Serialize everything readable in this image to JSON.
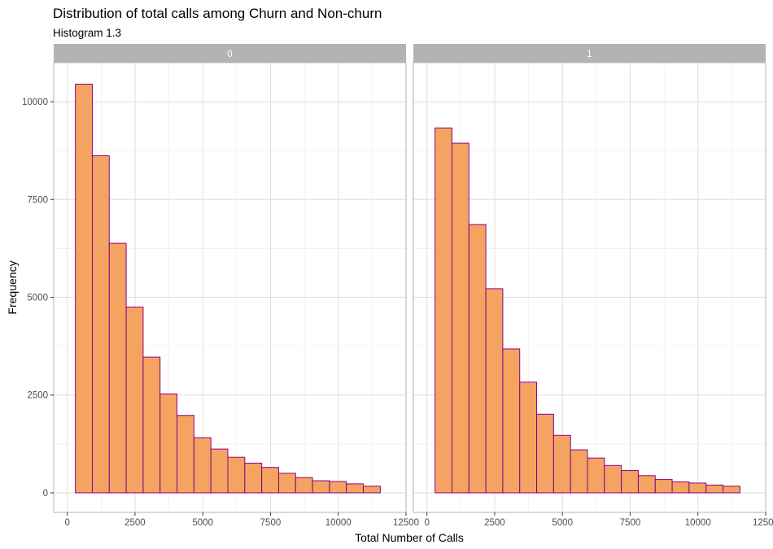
{
  "chart_data": {
    "type": "bar",
    "title": "Distribution of total calls among Churn and Non-churn",
    "subtitle": "Histogram 1.3",
    "xlabel": "Total Number of Calls",
    "ylabel": "Frequency",
    "xlim": [
      -500,
      12500
    ],
    "ylim": [
      -500,
      11000
    ],
    "x_ticks": [
      0,
      2500,
      5000,
      7500,
      10000,
      12500
    ],
    "x_tick_labels": [
      "0",
      "2500",
      "5000",
      "7500",
      "10000",
      "12500"
    ],
    "y_ticks": [
      0,
      2500,
      5000,
      7500,
      10000
    ],
    "y_tick_labels": [
      "0",
      "2500",
      "5000",
      "7500",
      "10000"
    ],
    "grid": true,
    "bar_fill": "#f4a460",
    "bar_outline": "#8b008b",
    "strip_color": "#b3b3b3",
    "grid_color": "#dedede",
    "bin_edges": [
      300,
      925,
      1550,
      2175,
      2800,
      3425,
      4050,
      4675,
      5300,
      5925,
      6550,
      7175,
      7800,
      8425,
      9050,
      9675,
      10300,
      10925,
      11550
    ],
    "panels": [
      {
        "label": "0",
        "values": [
          10450,
          8620,
          6380,
          4750,
          3470,
          2530,
          1980,
          1410,
          1120,
          910,
          760,
          650,
          500,
          390,
          310,
          290,
          230,
          170
        ]
      },
      {
        "label": "1",
        "values": [
          9330,
          8940,
          6860,
          5220,
          3680,
          2830,
          2010,
          1470,
          1100,
          890,
          700,
          570,
          440,
          340,
          280,
          250,
          200,
          170
        ]
      }
    ]
  }
}
